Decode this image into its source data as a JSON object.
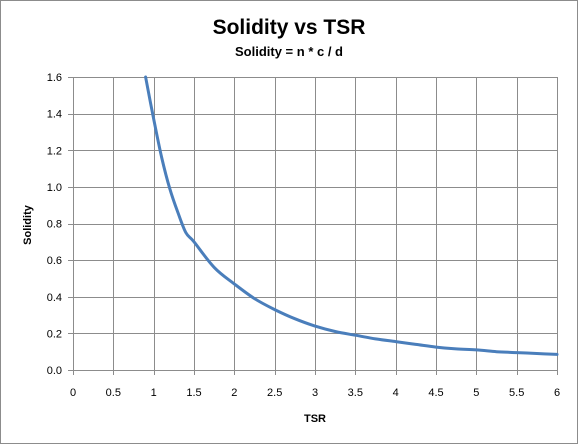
{
  "chart_data": {
    "type": "line",
    "title": "Solidity vs TSR",
    "subtitle": "Solidity = n * c / d",
    "xlabel": "TSR",
    "ylabel": "Solidity",
    "xlim": [
      0,
      6
    ],
    "ylim": [
      0,
      1.6
    ],
    "x_ticks": [
      "0",
      "0.5",
      "1",
      "1.5",
      "2",
      "2.5",
      "3",
      "3.5",
      "4",
      "4.5",
      "5",
      "5.5",
      "6"
    ],
    "y_ticks": [
      "0.0",
      "0.2",
      "0.4",
      "0.6",
      "0.8",
      "1.0",
      "1.2",
      "1.4",
      "1.6"
    ],
    "grid": true,
    "legend": "none",
    "series_color": "#4a7ebb",
    "series": [
      {
        "x": [
          0.9,
          1.0,
          1.1,
          1.2,
          1.3,
          1.4,
          1.5,
          1.75,
          2.0,
          2.25,
          2.5,
          2.75,
          3.0,
          3.25,
          3.5,
          3.75,
          4.0,
          4.25,
          4.5,
          4.75,
          5.0,
          5.25,
          5.5,
          5.75,
          6.0
        ],
        "y": [
          1.6,
          1.37,
          1.16,
          0.99,
          0.86,
          0.75,
          0.7,
          0.56,
          0.47,
          0.39,
          0.33,
          0.28,
          0.24,
          0.21,
          0.19,
          0.17,
          0.155,
          0.14,
          0.125,
          0.115,
          0.11,
          0.1,
          0.095,
          0.09,
          0.085
        ]
      }
    ]
  }
}
